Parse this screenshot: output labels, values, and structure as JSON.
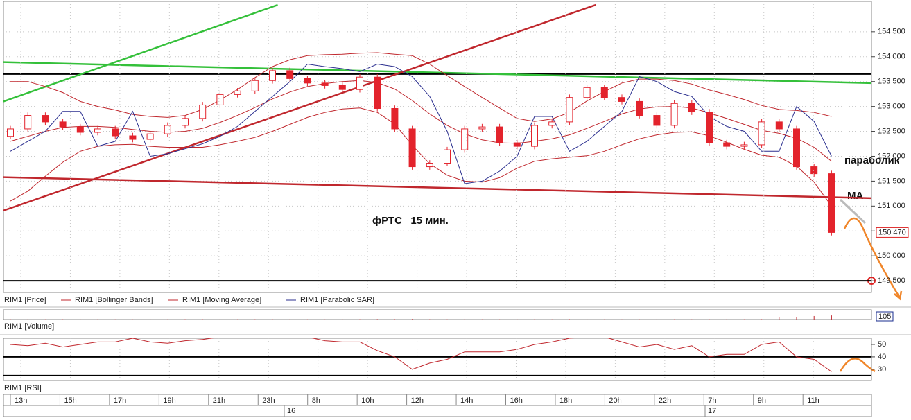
{
  "chart_data": {
    "type": "candlestick",
    "price_legend": "RIM1 [Price]",
    "x_labels": [
      "13h",
      "15h",
      "17h",
      "19h",
      "21h",
      "23h",
      "8h",
      "10h",
      "12h",
      "14h",
      "16h",
      "18h",
      "20h",
      "22h",
      "7h",
      "9h",
      "11h"
    ],
    "date_labels": [
      "16",
      "17"
    ],
    "open": [
      152400,
      152550,
      152820,
      152690,
      152590,
      152480,
      152550,
      152410,
      152340,
      152450,
      152620,
      152760,
      153030,
      153240,
      153310,
      153520,
      153720,
      153560,
      153470,
      153420,
      153340,
      153590,
      152960,
      152550,
      151790,
      151860,
      152130,
      152550,
      152590,
      152270,
      152200,
      152620,
      152690,
      153180,
      153380,
      153180,
      153100,
      152820,
      152620,
      153060,
      152890,
      152270,
      152200,
      152230,
      152690,
      152550,
      151790,
      151650
    ],
    "high": [
      152610,
      152880,
      152880,
      152750,
      152650,
      152610,
      152610,
      152470,
      152510,
      152680,
      152820,
      153090,
      153300,
      153370,
      153580,
      153780,
      153780,
      153620,
      153530,
      153480,
      153650,
      153650,
      153020,
      152610,
      151920,
      152190,
      152610,
      152650,
      152650,
      152330,
      152680,
      152750,
      153240,
      153440,
      153440,
      153240,
      153160,
      152880,
      153120,
      153120,
      152950,
      152330,
      152290,
      152750,
      152750,
      152610,
      151850,
      151710
    ],
    "low": [
      152340,
      152490,
      152630,
      152530,
      152420,
      152420,
      152350,
      152280,
      152280,
      152390,
      152560,
      152700,
      152970,
      153180,
      153250,
      153460,
      153500,
      153410,
      153360,
      153280,
      153280,
      152900,
      152490,
      151730,
      151730,
      151800,
      152070,
      152490,
      152210,
      152140,
      152140,
      152560,
      152630,
      153120,
      153120,
      153040,
      152760,
      152560,
      152560,
      152830,
      152210,
      152140,
      152140,
      152170,
      152490,
      151730,
      151590,
      150410
    ],
    "close": [
      152550,
      152820,
      152690,
      152590,
      152480,
      152550,
      152410,
      152340,
      152450,
      152620,
      152760,
      153030,
      153240,
      153310,
      153520,
      153720,
      153560,
      153470,
      153420,
      153340,
      153590,
      152960,
      152550,
      151790,
      151860,
      152130,
      152550,
      152590,
      152270,
      152200,
      152620,
      152690,
      153180,
      153380,
      153180,
      153100,
      152820,
      152620,
      153060,
      152890,
      152270,
      152200,
      152230,
      152690,
      152550,
      151790,
      151650,
      150470
    ],
    "up_color": "#ffffff",
    "down_color": "#e3232c",
    "series": [
      {
        "name": "RIM1 [Bollinger Bands]",
        "color": "#c0272d",
        "upper": [
          153500,
          153500,
          153400,
          153280,
          153100,
          153000,
          152930,
          152840,
          152800,
          152780,
          152820,
          152940,
          153130,
          153340,
          153580,
          153800,
          153940,
          154020,
          154040,
          154050,
          154070,
          154080,
          154050,
          154020,
          153850,
          153620,
          153400,
          153180,
          152970,
          152760,
          152700,
          152750,
          152880,
          153110,
          153300,
          153470,
          153550,
          153550,
          153520,
          153450,
          153330,
          153240,
          153140,
          153020,
          152940,
          152920,
          152880,
          152800
        ],
        "lower": [
          151100,
          151300,
          151600,
          151880,
          152100,
          152200,
          152230,
          152240,
          152200,
          152180,
          152180,
          152180,
          152230,
          152300,
          152380,
          152500,
          152640,
          152780,
          152880,
          152950,
          152970,
          152880,
          152650,
          152220,
          151850,
          151620,
          151500,
          151480,
          151570,
          151760,
          151900,
          151950,
          151980,
          152010,
          152100,
          152230,
          152350,
          152430,
          152480,
          152490,
          152410,
          152280,
          152140,
          152020,
          151980,
          151800,
          151480,
          151000
        ]
      },
      {
        "name": "RIM1 [Moving Average]",
        "color": "#c0272d",
        "values": [
          152300,
          152400,
          152500,
          152580,
          152600,
          152600,
          152580,
          152540,
          152500,
          152480,
          152500,
          152560,
          152680,
          152820,
          152980,
          153150,
          153290,
          153400,
          153460,
          153500,
          153520,
          153480,
          153350,
          153120,
          152850,
          152620,
          152450,
          152330,
          152270,
          152260,
          152300,
          152350,
          152430,
          152560,
          152700,
          152850,
          152950,
          152990,
          153000,
          152970,
          152870,
          152760,
          152640,
          152520,
          152460,
          152360,
          152180,
          151900
        ]
      },
      {
        "name": "RIM1 [Parabolic SAR]",
        "color": "#2b2f8f",
        "values": [
          152100,
          152300,
          152500,
          152900,
          152900,
          152200,
          152300,
          152900,
          152000,
          152050,
          152150,
          152250,
          152400,
          152600,
          152900,
          153200,
          153500,
          153850,
          153800,
          153760,
          153700,
          153850,
          153800,
          153600,
          153200,
          152500,
          151450,
          151500,
          151700,
          152000,
          152800,
          152800,
          152100,
          152300,
          152600,
          152900,
          153600,
          153500,
          153300,
          153200,
          152800,
          152600,
          152500,
          152100,
          152100,
          153000,
          152700,
          152000
        ]
      }
    ],
    "ylim": [
      149265,
      155110
    ],
    "yticks": [
      {
        "value": 149500,
        "label": "149 500"
      },
      {
        "value": 150000,
        "label": "150 000"
      },
      {
        "value": 150500,
        "label": "150 500"
      },
      {
        "value": 151000,
        "label": "151 000"
      },
      {
        "value": 151500,
        "label": "151 500"
      },
      {
        "value": 152000,
        "label": "152 000"
      },
      {
        "value": 152500,
        "label": "152 500"
      },
      {
        "value": 153000,
        "label": "153 000"
      },
      {
        "value": 153500,
        "label": "153 500"
      },
      {
        "value": 154000,
        "label": "154 000"
      },
      {
        "value": 154500,
        "label": "154 500"
      }
    ],
    "grid": true,
    "levels": [
      153650,
      149500
    ],
    "lines": [
      {
        "color": "#34c03a",
        "x": [
          -0.4,
          15.3
        ],
        "y": [
          153100,
          155040
        ]
      },
      {
        "color": "#34c03a",
        "x": [
          -0.4,
          49.3
        ],
        "y": [
          153890,
          153470
        ]
      },
      {
        "color": "#c0272d",
        "x": [
          -0.4,
          33.5
        ],
        "y": [
          150910,
          155040
        ]
      },
      {
        "color": "#c0272d",
        "x": [
          -0.4,
          49.3
        ],
        "y": [
          151580,
          151160
        ]
      }
    ],
    "last_price": {
      "value": 150470,
      "label": "150 470"
    },
    "annotations": [
      "фРТС   15 мин.",
      "параболик",
      "МА"
    ],
    "volume": {
      "name": "RIM1 [Volume]",
      "ylim": [
        0,
        250
      ],
      "values": [
        8,
        6,
        5,
        7,
        4,
        6,
        5,
        4,
        6,
        5,
        8,
        9,
        7,
        6,
        8,
        10,
        6,
        5,
        4,
        6,
        9,
        12,
        10,
        14,
        8,
        7,
        9,
        6,
        5,
        7,
        8,
        6,
        10,
        7,
        6,
        5,
        6,
        8,
        7,
        6,
        9,
        8,
        7,
        10,
        60,
        70,
        90,
        105
      ]
    },
    "rsi": {
      "name": "RIM1 [RSI]",
      "color": "#c0272d",
      "ylim": [
        21,
        55
      ],
      "yticks": [
        50,
        40,
        30
      ],
      "levels": [
        40,
        25
      ],
      "values": [
        50,
        49,
        51,
        48,
        50,
        52,
        52,
        55,
        52,
        51,
        53,
        54,
        56,
        56,
        56,
        56,
        56,
        56,
        53,
        52,
        52,
        45,
        40,
        30,
        35,
        38,
        44,
        44,
        44,
        46,
        50,
        52,
        55,
        56,
        56,
        52,
        48,
        50,
        46,
        49,
        40,
        42,
        42,
        50,
        52,
        40,
        38,
        28
      ]
    }
  }
}
